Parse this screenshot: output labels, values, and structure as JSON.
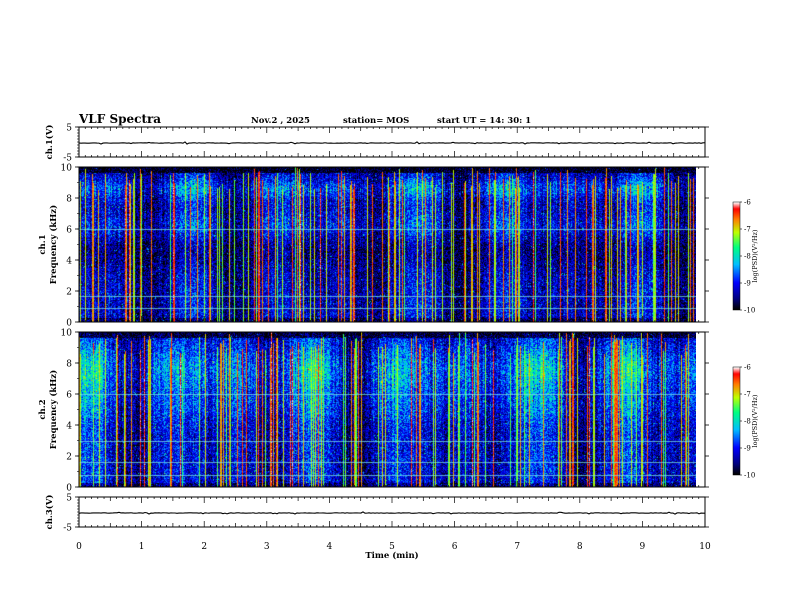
{
  "header": {
    "title": "VLF Spectra",
    "date": "Nov.2 , 2025",
    "station": "station= MOS",
    "start_ut": "start UT = 14: 30: 1"
  },
  "chart_data": [
    {
      "type": "line",
      "name": "ch1-voltage",
      "ylabel": "ch.1(V)",
      "ylim": [
        -5,
        5
      ],
      "yticks": [
        "5",
        "-5"
      ],
      "xlim": [
        0,
        10
      ],
      "baseline_value": 0
    },
    {
      "type": "heatmap",
      "name": "ch1-spectrogram",
      "ylabel": "ch.1\nFrequency (kHz)",
      "ylim": [
        0,
        10
      ],
      "yticks": [
        "0",
        "2",
        "4",
        "6",
        "8",
        "10"
      ],
      "xlim": [
        0,
        10
      ],
      "data_end_min": 9.85,
      "colorbar": {
        "label": "log(PSD)(V²/Hz)",
        "range": [
          -10,
          -6
        ],
        "ticks": [
          "-6",
          "-7",
          "-8",
          "-9",
          "-10"
        ]
      }
    },
    {
      "type": "heatmap",
      "name": "ch2-spectrogram",
      "ylabel": "ch.2\nFrequency (kHz)",
      "ylim": [
        0,
        10
      ],
      "yticks": [
        "0",
        "2",
        "4",
        "6",
        "8",
        "10"
      ],
      "xlim": [
        0,
        10
      ],
      "data_end_min": 9.85,
      "colorbar": {
        "label": "log(PSD)(V²/Hz)",
        "range": [
          -10,
          -6
        ],
        "ticks": [
          "-6",
          "-7",
          "-8",
          "-9",
          "-10"
        ]
      }
    },
    {
      "type": "line",
      "name": "ch3-voltage",
      "ylabel": "ch.3(V)",
      "ylim": [
        -5,
        5
      ],
      "yticks": [
        "5",
        "-5"
      ],
      "xlim": [
        0,
        10
      ],
      "baseline_value": 0,
      "xlabel": "Time (min)",
      "xticks": [
        "0",
        "1",
        "2",
        "3",
        "4",
        "5",
        "6",
        "7",
        "8",
        "9",
        "10"
      ]
    }
  ],
  "colors": {
    "background": "#ffffff",
    "axis": "#000000",
    "colormap": [
      "#000000",
      "#00007f",
      "#0000ff",
      "#00bfff",
      "#00ff80",
      "#bfff00",
      "#ff8000",
      "#ff0000",
      "#ffffff"
    ]
  }
}
